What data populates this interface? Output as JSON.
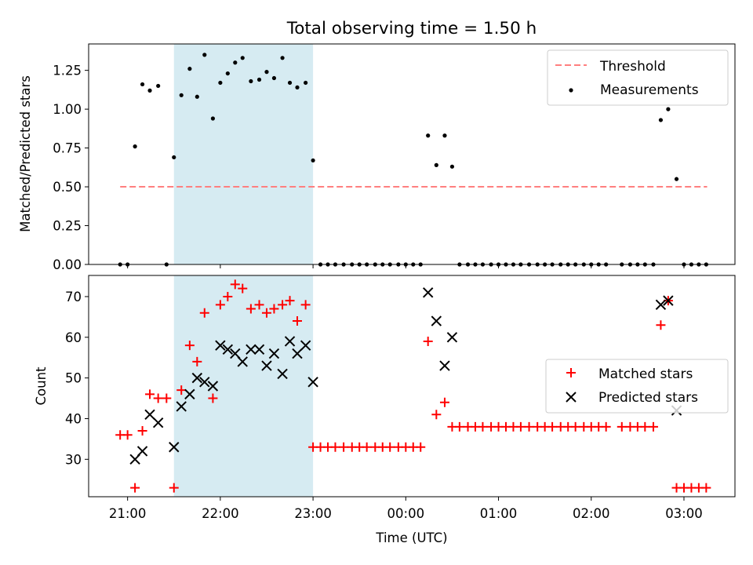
{
  "chart_data": [
    {
      "type": "scatter",
      "title": "Total observing time = 1.50 h",
      "ylabel": "Matched/Predicted stars",
      "xlabel": "",
      "ylim": [
        0,
        1.42
      ],
      "yticks": [
        "0.00",
        "0.25",
        "0.50",
        "0.75",
        "1.00",
        "1.25"
      ],
      "ytick_values": [
        0,
        0.25,
        0.5,
        0.75,
        1.0,
        1.25
      ],
      "x_range_hours": [
        20.58,
        27.55
      ],
      "x_tick_hours": [
        21,
        22,
        23,
        24,
        25,
        26,
        27
      ],
      "shaded_span_hours": [
        21.5,
        23.0
      ],
      "shade_color": "#add8e6",
      "legend_position": "upper right",
      "threshold": {
        "name": "Threshold",
        "value": 0.5,
        "x": [
          20.92,
          27.25
        ],
        "color": "#ff7f7f"
      },
      "series": [
        {
          "name": "Measurements",
          "marker": "dot",
          "color": "#000000",
          "x": [
            20.92,
            21.0,
            21.08,
            21.16,
            21.24,
            21.33,
            21.42,
            21.5,
            21.58,
            21.67,
            21.75,
            21.83,
            21.92,
            22.0,
            22.08,
            22.16,
            22.24,
            22.33,
            22.42,
            22.5,
            22.58,
            22.67,
            22.75,
            22.83,
            22.92,
            23.0,
            23.08,
            23.16,
            23.24,
            23.33,
            23.42,
            23.5,
            23.58,
            23.67,
            23.75,
            23.83,
            23.92,
            24.0,
            24.08,
            24.16,
            24.24,
            24.33,
            24.42,
            24.5,
            24.58,
            24.67,
            24.75,
            24.83,
            24.92,
            25.0,
            25.08,
            25.16,
            25.24,
            25.33,
            25.42,
            25.5,
            25.58,
            25.67,
            25.75,
            25.83,
            25.92,
            26.0,
            26.08,
            26.16,
            26.33,
            26.42,
            26.5,
            26.58,
            26.67,
            26.75,
            26.83,
            26.92,
            27.0,
            27.08,
            27.16,
            27.24
          ],
          "y": [
            0,
            0,
            0.76,
            1.16,
            1.12,
            1.15,
            0,
            0.69,
            1.09,
            1.26,
            1.08,
            1.35,
            0.94,
            1.17,
            1.23,
            1.3,
            1.33,
            1.18,
            1.19,
            1.24,
            1.2,
            1.33,
            1.17,
            1.14,
            1.17,
            0.67,
            0,
            0,
            0,
            0,
            0,
            0,
            0,
            0,
            0,
            0,
            0,
            0,
            0,
            0,
            0.83,
            0.64,
            0.83,
            0.63,
            0,
            0,
            0,
            0,
            0,
            0,
            0,
            0,
            0,
            0,
            0,
            0,
            0,
            0,
            0,
            0,
            0,
            0,
            0,
            0,
            0,
            0,
            0,
            0,
            0,
            0.93,
            1.0,
            0.55,
            0,
            0,
            0,
            0
          ]
        }
      ]
    },
    {
      "type": "scatter",
      "title": "",
      "ylabel": "Count",
      "xlabel": "Time (UTC)",
      "ylim": [
        20.8,
        75.2
      ],
      "yticks": [
        "30",
        "40",
        "50",
        "60",
        "70"
      ],
      "ytick_values": [
        30,
        40,
        50,
        60,
        70
      ],
      "x_range_hours": [
        20.58,
        27.55
      ],
      "x_tick_hours": [
        21,
        22,
        23,
        24,
        25,
        26,
        27
      ],
      "xticks": [
        "21:00",
        "22:00",
        "23:00",
        "00:00",
        "01:00",
        "02:00",
        "03:00"
      ],
      "shaded_span_hours": [
        21.5,
        23.0
      ],
      "shade_color": "#add8e6",
      "legend_position": "center right",
      "series": [
        {
          "name": "Matched stars",
          "marker": "plus",
          "color": "#ff0000",
          "x": [
            20.92,
            21.0,
            21.08,
            21.16,
            21.24,
            21.33,
            21.42,
            21.5,
            21.58,
            21.67,
            21.75,
            21.83,
            21.92,
            22.0,
            22.08,
            22.16,
            22.24,
            22.33,
            22.42,
            22.5,
            22.58,
            22.67,
            22.75,
            22.83,
            22.92,
            23.0,
            23.08,
            23.16,
            23.24,
            23.33,
            23.42,
            23.5,
            23.58,
            23.67,
            23.75,
            23.83,
            23.92,
            24.0,
            24.08,
            24.16,
            24.24,
            24.33,
            24.42,
            24.5,
            24.58,
            24.67,
            24.75,
            24.83,
            24.92,
            25.0,
            25.08,
            25.16,
            25.24,
            25.33,
            25.42,
            25.5,
            25.58,
            25.67,
            25.75,
            25.83,
            25.92,
            26.0,
            26.08,
            26.16,
            26.33,
            26.42,
            26.5,
            26.58,
            26.67,
            26.75,
            26.83,
            26.92,
            27.0,
            27.08,
            27.16,
            27.24
          ],
          "y": [
            36,
            36,
            23,
            37,
            46,
            45,
            45,
            23,
            47,
            58,
            54,
            66,
            45,
            68,
            70,
            73,
            72,
            67,
            68,
            66,
            67,
            68,
            69,
            64,
            68,
            33,
            33,
            33,
            33,
            33,
            33,
            33,
            33,
            33,
            33,
            33,
            33,
            33,
            33,
            33,
            59,
            41,
            44,
            38,
            38,
            38,
            38,
            38,
            38,
            38,
            38,
            38,
            38,
            38,
            38,
            38,
            38,
            38,
            38,
            38,
            38,
            38,
            38,
            38,
            38,
            38,
            38,
            38,
            38,
            63,
            69,
            23,
            23,
            23,
            23,
            23
          ]
        },
        {
          "name": "Predicted stars",
          "marker": "x",
          "color": "#000000",
          "x": [
            21.08,
            21.16,
            21.24,
            21.33,
            21.5,
            21.58,
            21.67,
            21.75,
            21.83,
            21.92,
            22.0,
            22.08,
            22.16,
            22.24,
            22.33,
            22.42,
            22.5,
            22.58,
            22.67,
            22.75,
            22.83,
            22.92,
            23.0,
            24.24,
            24.33,
            24.42,
            24.5,
            26.75,
            26.83,
            26.92
          ],
          "y": [
            30,
            32,
            41,
            39,
            33,
            43,
            46,
            50,
            49,
            48,
            58,
            57,
            56,
            54,
            57,
            57,
            53,
            56,
            51,
            59,
            56,
            58,
            49,
            71,
            64,
            53,
            60,
            68,
            69,
            42
          ]
        }
      ]
    }
  ]
}
